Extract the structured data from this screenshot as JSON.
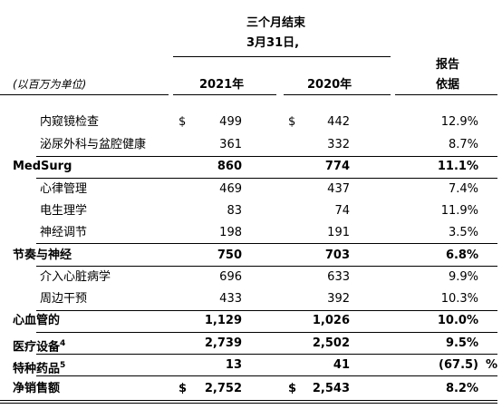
{
  "header": {
    "period_line1": "三个月结束",
    "period_line2": "3月31日,",
    "units": "(以百万为单位)",
    "col_2021": "2021年",
    "col_2020": "2020年",
    "col_growth_line1": "报告",
    "col_growth_line2": "依据"
  },
  "rows": [
    {
      "label": "内窥镜检查",
      "d1": "$",
      "v2021": "499",
      "d2": "$",
      "v2020": "442",
      "growth": "12.9%",
      "pct": "",
      "bold": false
    },
    {
      "label": "泌尿外科与盆腔健康",
      "d1": "",
      "v2021": "361",
      "d2": "",
      "v2020": "332",
      "growth": "8.7%",
      "pct": "",
      "bold": false
    },
    {
      "label": "MedSurg",
      "d1": "",
      "v2021": "860",
      "d2": "",
      "v2020": "774",
      "growth": "11.1%",
      "pct": "",
      "bold": true
    },
    {
      "label": "心律管理",
      "d1": "",
      "v2021": "469",
      "d2": "",
      "v2020": "437",
      "growth": "7.4%",
      "pct": "",
      "bold": false
    },
    {
      "label": "电生理学",
      "d1": "",
      "v2021": "83",
      "d2": "",
      "v2020": "74",
      "growth": "11.9%",
      "pct": "",
      "bold": false
    },
    {
      "label": "神经调节",
      "d1": "",
      "v2021": "198",
      "d2": "",
      "v2020": "191",
      "growth": "3.5%",
      "pct": "",
      "bold": false
    },
    {
      "label": "节奏与神经",
      "d1": "",
      "v2021": "750",
      "d2": "",
      "v2020": "703",
      "growth": "6.8%",
      "pct": "",
      "bold": true
    },
    {
      "label": "介入心脏病学",
      "d1": "",
      "v2021": "696",
      "d2": "",
      "v2020": "633",
      "growth": "9.9%",
      "pct": "",
      "bold": false
    },
    {
      "label": "周边干预",
      "d1": "",
      "v2021": "433",
      "d2": "",
      "v2020": "392",
      "growth": "10.3%",
      "pct": "",
      "bold": false
    },
    {
      "label": "心血管的",
      "d1": "",
      "v2021": "1,129",
      "d2": "",
      "v2020": "1,026",
      "growth": "10.0%",
      "pct": "",
      "bold": true
    },
    {
      "label": "医疗设备",
      "sup": "4",
      "d1": "",
      "v2021": "2,739",
      "d2": "",
      "v2020": "2,502",
      "growth": "9.5%",
      "pct": "",
      "bold": true
    },
    {
      "label": "特种药品",
      "sup": "5",
      "d1": "",
      "v2021": "13",
      "d2": "",
      "v2020": "41",
      "growth": "(67.5)",
      "pct": "%",
      "bold": true
    },
    {
      "label": "净销售额",
      "d1": "$",
      "v2021": "2,752",
      "d2": "$",
      "v2020": "2,543",
      "growth": "8.2%",
      "pct": "",
      "bold": true
    }
  ]
}
